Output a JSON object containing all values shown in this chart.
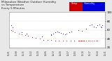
{
  "title": "Milwaukee Weather Outdoor Humidity\nvs Temperature\nEvery 5 Minutes",
  "title_fontsize": 3.0,
  "background_color": "#e8e8e8",
  "plot_bg_color": "#ffffff",
  "grid_color": "#aaaaaa",
  "blue_color": "#0000dd",
  "red_color": "#cc0000",
  "legend_red_label": "Temp",
  "legend_blue_label": "Humidity",
  "blue_x": [
    0.02,
    0.04,
    0.13,
    0.18,
    0.34,
    0.44,
    0.44,
    0.46,
    0.48,
    0.5,
    0.52,
    0.54,
    0.56,
    0.58,
    0.6,
    0.63,
    0.65,
    0.72,
    0.76,
    0.8,
    0.84,
    0.86,
    0.88,
    0.9,
    0.92,
    0.94,
    0.95,
    0.96,
    0.97
  ],
  "blue_y": [
    70,
    65,
    55,
    52,
    45,
    48,
    50,
    52,
    54,
    56,
    55,
    53,
    52,
    50,
    52,
    54,
    56,
    60,
    58,
    62,
    70,
    72,
    68,
    65,
    70,
    72,
    68,
    65,
    70
  ],
  "red_x": [
    0.02,
    0.04,
    0.06,
    0.1,
    0.13,
    0.17,
    0.2,
    0.24,
    0.28,
    0.32,
    0.36,
    0.4,
    0.44,
    0.48,
    0.52,
    0.56,
    0.6,
    0.64,
    0.68,
    0.72,
    0.73,
    0.74,
    0.75,
    0.76,
    0.77,
    0.78,
    0.8,
    0.82,
    0.84,
    0.86,
    0.88,
    0.9,
    0.92
  ],
  "red_y": [
    60,
    58,
    55,
    52,
    50,
    48,
    46,
    44,
    42,
    40,
    38,
    38,
    37,
    36,
    35,
    35,
    36,
    35,
    35,
    35,
    35,
    35,
    35,
    35,
    35,
    35,
    35,
    35,
    35,
    35,
    35,
    35,
    35
  ],
  "ylim": [
    20,
    100
  ],
  "xlim": [
    0.0,
    1.0
  ],
  "yticks": [
    20,
    40,
    60,
    80,
    100
  ],
  "marker_size": 1.5,
  "dot_marker": ".",
  "figsize": [
    1.6,
    0.87
  ],
  "dpi": 100
}
